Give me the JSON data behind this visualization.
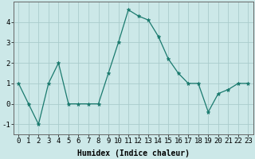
{
  "x": [
    0,
    1,
    2,
    3,
    4,
    5,
    6,
    7,
    8,
    9,
    10,
    11,
    12,
    13,
    14,
    15,
    16,
    17,
    18,
    19,
    20,
    21,
    22,
    23
  ],
  "y": [
    1,
    0,
    -1,
    1,
    2,
    0,
    0,
    0,
    0,
    1.5,
    3,
    4.6,
    4.3,
    4.1,
    3.3,
    2.2,
    1.5,
    1,
    1,
    -0.4,
    0.5,
    0.7,
    1,
    1
  ],
  "xlabel": "Humidex (Indice chaleur)",
  "line_color": "#1a7a6e",
  "marker_color": "#1a7a6e",
  "bg_color": "#cce8e8",
  "grid_color": "#aacccc",
  "ylim": [
    -1.5,
    5.0
  ],
  "xlim": [
    -0.5,
    23.5
  ],
  "yticks": [
    -1,
    0,
    1,
    2,
    3,
    4
  ],
  "xticks": [
    0,
    1,
    2,
    3,
    4,
    5,
    6,
    7,
    8,
    9,
    10,
    11,
    12,
    13,
    14,
    15,
    16,
    17,
    18,
    19,
    20,
    21,
    22,
    23
  ],
  "xlabel_fontsize": 7,
  "tick_fontsize": 6.5
}
